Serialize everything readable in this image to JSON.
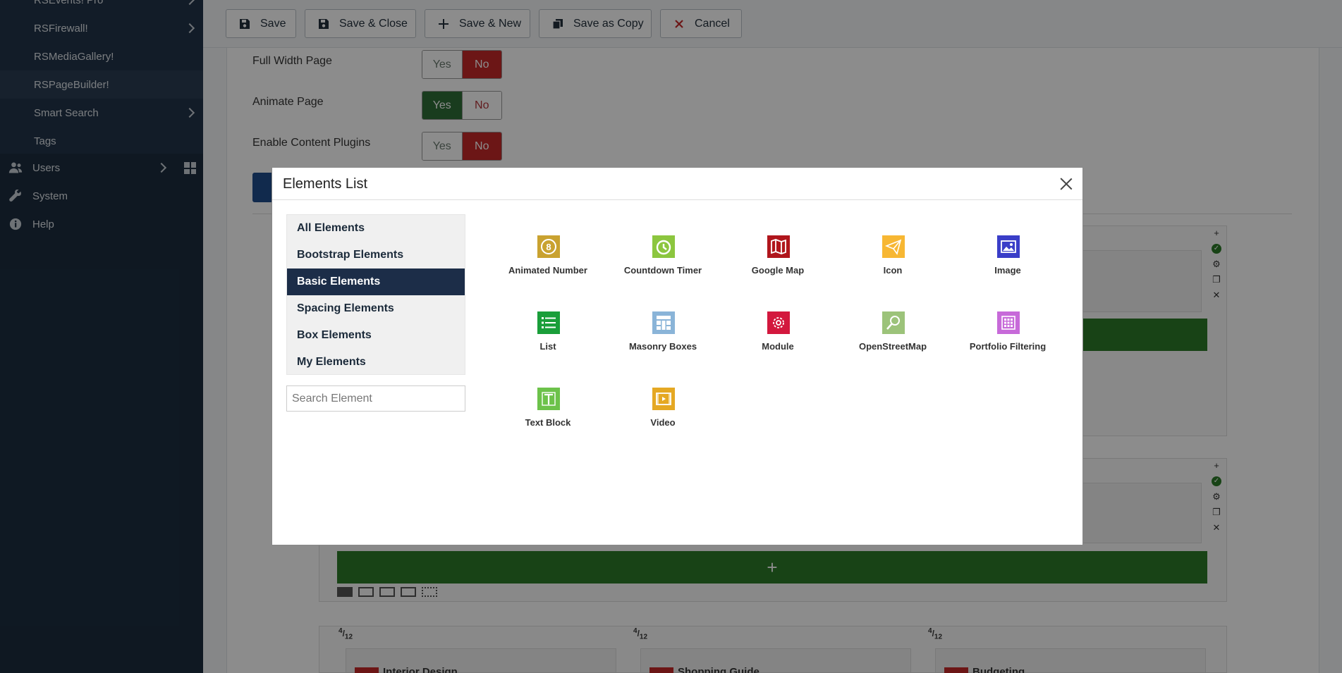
{
  "sidebar": {
    "items": [
      {
        "label": "RSEvents! Pro",
        "chevron": true
      },
      {
        "label": "RSFirewall!",
        "chevron": true
      },
      {
        "label": "RSMediaGallery!",
        "chevron": false
      },
      {
        "label": "RSPageBuilder!",
        "chevron": false
      },
      {
        "label": "Smart Search",
        "chevron": true
      },
      {
        "label": "Tags",
        "chevron": false
      }
    ],
    "top_items": [
      {
        "label": "Users",
        "icon": "users-icon"
      },
      {
        "label": "System",
        "icon": "wrench-icon"
      },
      {
        "label": "Help",
        "icon": "info-icon"
      }
    ]
  },
  "toolbar": {
    "save": "Save",
    "save_close": "Save & Close",
    "save_new": "Save & New",
    "save_copy": "Save as Copy",
    "cancel": "Cancel"
  },
  "options": [
    {
      "label": "Full Width Page",
      "yes": "Yes",
      "no": "No",
      "value": "No"
    },
    {
      "label": "Animate Page",
      "yes": "Yes",
      "no": "No",
      "value": "Yes"
    },
    {
      "label": "Enable Content Plugins",
      "yes": "Yes",
      "no": "No",
      "value": "No"
    }
  ],
  "builder": {
    "add_symbol": "+",
    "col_fraction_num": "4",
    "col_fraction_den": "12",
    "cards": [
      "Interior Design",
      "Shopping Guide",
      "Budgeting"
    ]
  },
  "modal": {
    "title": "Elements List",
    "categories": [
      "All Elements",
      "Bootstrap Elements",
      "Basic Elements",
      "Spacing Elements",
      "Box Elements",
      "My Elements"
    ],
    "active_category": "Basic Elements",
    "search_placeholder": "Search Element",
    "elements": [
      {
        "label": "Animated Number",
        "icon": "animated-number-icon",
        "color": "#c9a230"
      },
      {
        "label": "Countdown Timer",
        "icon": "countdown-timer-icon",
        "color": "#8cc63f"
      },
      {
        "label": "Google Map",
        "icon": "google-map-icon",
        "color": "#b0161c"
      },
      {
        "label": "Icon",
        "icon": "paper-plane-icon",
        "color": "#f7b733"
      },
      {
        "label": "Image",
        "icon": "image-icon",
        "color": "#3a3ec8"
      },
      {
        "label": "List",
        "icon": "list-icon",
        "color": "#1a9e3a"
      },
      {
        "label": "Masonry Boxes",
        "icon": "masonry-boxes-icon",
        "color": "#8ab4d8"
      },
      {
        "label": "Module",
        "icon": "module-icon",
        "color": "#d3183e"
      },
      {
        "label": "OpenStreetMap",
        "icon": "openstreetmap-icon",
        "color": "#9cc37a"
      },
      {
        "label": "Portfolio Filtering",
        "icon": "portfolio-filtering-icon",
        "color": "#c76ad9"
      },
      {
        "label": "Text Block",
        "icon": "text-block-icon",
        "color": "#6cc24a"
      },
      {
        "label": "Video",
        "icon": "video-icon",
        "color": "#e5a823"
      }
    ]
  }
}
